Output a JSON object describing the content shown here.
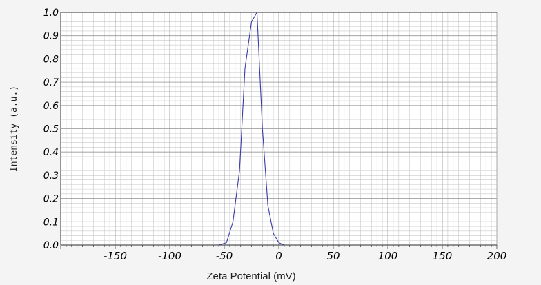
{
  "chart_data": {
    "type": "line",
    "xlabel": "Zeta Potential (mV)",
    "ylabel": "Intensity (a.u.)",
    "xlim": [
      -200,
      200
    ],
    "ylim": [
      0,
      1.0
    ],
    "xticks": [
      -150,
      -100,
      -50,
      0,
      50,
      100,
      150,
      200
    ],
    "xtick_labels": [
      "-150",
      "-100",
      "-50",
      "0",
      "50",
      "100",
      "150",
      "200"
    ],
    "yticks": [
      0,
      0.1,
      0.2,
      0.3,
      0.4,
      0.5,
      0.6,
      0.7,
      0.8,
      0.9,
      1.0
    ],
    "ytick_labels": [
      "0.0",
      "0.1",
      "0.2",
      "0.3",
      "0.4",
      "0.5",
      "0.6",
      "0.7",
      "0.8",
      "0.9",
      "1.0"
    ],
    "grid": true,
    "series": [
      {
        "color": "#3a3aa8",
        "x": [
          -55,
          -48,
          -42,
          -36,
          -31,
          -25,
          -20,
          -15,
          -10,
          -5,
          0,
          5
        ],
        "y": [
          0.0,
          0.01,
          0.1,
          0.32,
          0.76,
          0.96,
          1.0,
          0.5,
          0.17,
          0.05,
          0.01,
          0.0
        ]
      }
    ]
  }
}
